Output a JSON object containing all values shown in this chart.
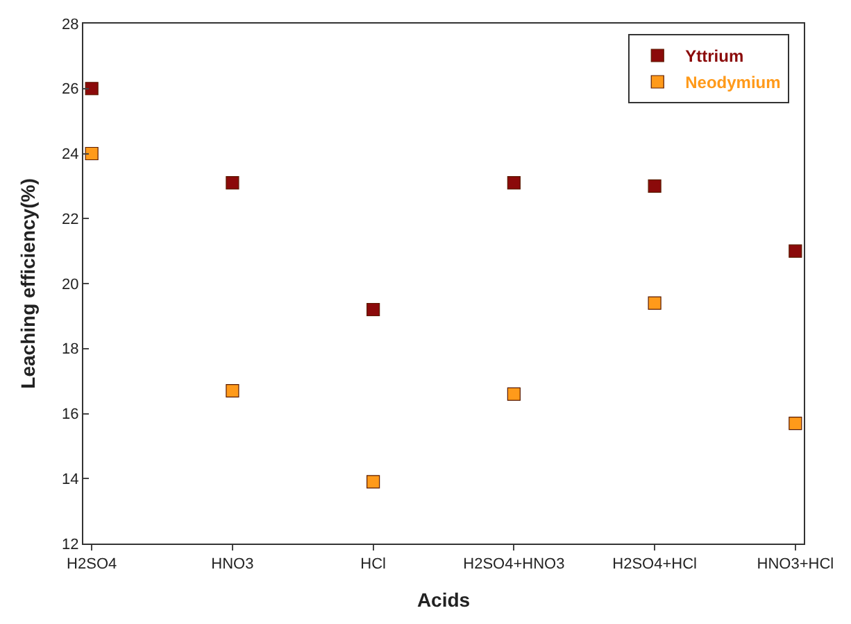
{
  "chart_data": {
    "type": "scatter",
    "xlabel": "Acids",
    "ylabel": "Leaching efficiency(%)",
    "categories": [
      "H2SO4",
      "HNO3",
      "HCl",
      "H2SO4+HNO3",
      "H2SO4+HCl",
      "HNO3+HCl"
    ],
    "series": [
      {
        "name": "Yttrium",
        "color": "#8b0a0a",
        "values": [
          26.0,
          23.1,
          19.2,
          23.1,
          23.0,
          21.0
        ]
      },
      {
        "name": "Neodymium",
        "color": "#ff9a1a",
        "values": [
          24.0,
          16.7,
          13.9,
          16.6,
          19.4,
          15.7
        ]
      }
    ],
    "ylim": [
      12,
      28
    ],
    "yticks": [
      12,
      14,
      16,
      18,
      20,
      22,
      24,
      26,
      28
    ],
    "marker": "square",
    "grid": false,
    "legend": "top right"
  }
}
